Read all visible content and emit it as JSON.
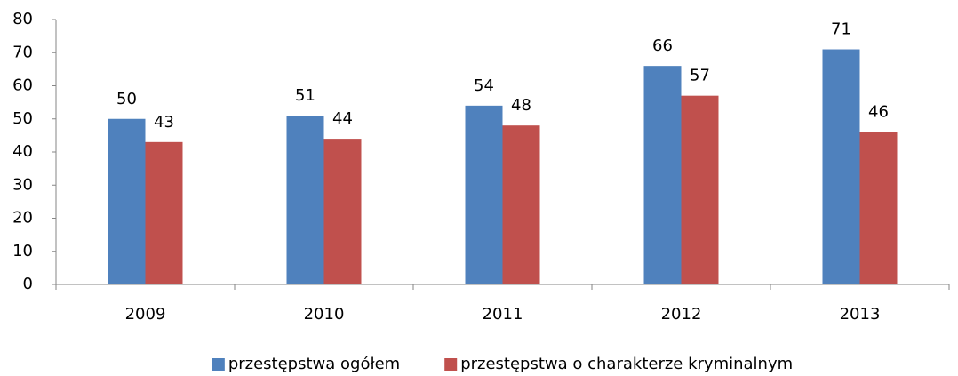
{
  "chart_data": {
    "type": "bar",
    "categories": [
      "2009",
      "2010",
      "2011",
      "2012",
      "2013"
    ],
    "series": [
      {
        "name": "przestępstwa ogółem",
        "color": "#4f81bd",
        "values": [
          50,
          51,
          54,
          66,
          71
        ]
      },
      {
        "name": "przestępstwa o charakterze kryminalnym",
        "color": "#c0504d",
        "values": [
          43,
          44,
          48,
          57,
          46
        ]
      }
    ],
    "ylim": [
      0,
      80
    ],
    "yticks": [
      0,
      10,
      20,
      30,
      40,
      50,
      60,
      70,
      80
    ],
    "grid": false,
    "legend": "bottom"
  }
}
